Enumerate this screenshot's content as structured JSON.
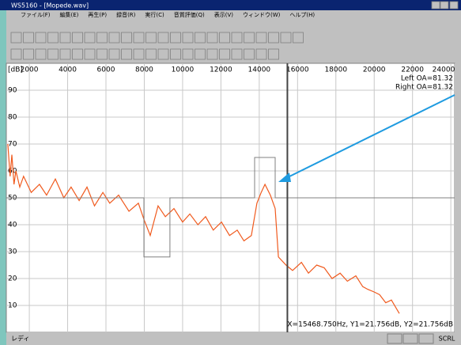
{
  "window": {
    "title": "WS5160 - [Mopede.wav]"
  },
  "menu": [
    "ファイル(F)",
    "編集(E)",
    "再生(P)",
    "録音(R)",
    "実行(C)",
    "音質評価(Q)",
    "表示(V)",
    "ウィンドウ(W)",
    "ヘルプ(H)"
  ],
  "chart_data": {
    "type": "line",
    "y_label": "[dB]",
    "xlim": [
      800,
      24200
    ],
    "ylim": [
      0,
      100
    ],
    "xticks": [
      2000,
      4000,
      6000,
      8000,
      10000,
      12000,
      14000,
      16000,
      18000,
      20000,
      22000,
      24000
    ],
    "yticks": [
      10,
      20,
      30,
      40,
      50,
      60,
      70,
      80,
      90
    ],
    "grid": true,
    "series": [
      {
        "color": "#f05a1e",
        "x": [
          880,
          1000,
          1090,
          1200,
          1300,
          1500,
          1700,
          2100,
          2530,
          2900,
          3360,
          3800,
          4180,
          4600,
          5010,
          5400,
          5840,
          6200,
          6660,
          7200,
          7690,
          7980,
          8310,
          8720,
          9100,
          9550,
          10000,
          10380,
          10800,
          11200,
          11600,
          12030,
          12450,
          12850,
          13200,
          13590,
          13880,
          14100,
          14300,
          14580,
          14830,
          15000,
          15400,
          15740,
          16200,
          16570,
          17000,
          17390,
          17800,
          18220,
          18600,
          19040,
          19400,
          19660,
          20000,
          20280,
          20600,
          20900,
          21310
        ],
        "values": [
          70,
          58,
          66,
          55,
          60,
          54,
          58,
          52,
          55,
          51,
          57,
          50,
          54,
          49,
          54,
          47,
          52,
          48,
          51,
          45,
          48,
          42,
          36,
          47,
          43,
          46,
          41,
          44,
          40,
          43,
          38,
          41,
          36,
          38,
          34,
          36,
          48,
          52,
          55,
          51,
          46,
          28,
          25,
          23,
          26,
          22,
          25,
          24,
          20,
          22,
          19,
          21,
          17,
          16,
          15,
          14,
          11,
          12,
          7
        ]
      },
      {
        "color": "#808080",
        "x": [
          800,
          7980,
          7980,
          9340,
          9340,
          13760,
          13760,
          14830,
          14830,
          24200
        ],
        "values": [
          50,
          50,
          28,
          28,
          50,
          50,
          65,
          65,
          50,
          50
        ]
      }
    ],
    "annotations": [
      "Left OA=81.32",
      "Right OA=81.32"
    ],
    "cursor": {
      "x": 15468.75,
      "label": "X=15468.750Hz, Y1=21.756dB, Y2=21.756dB"
    }
  },
  "status": {
    "text": "レディ",
    "scroll": "SCRL"
  }
}
